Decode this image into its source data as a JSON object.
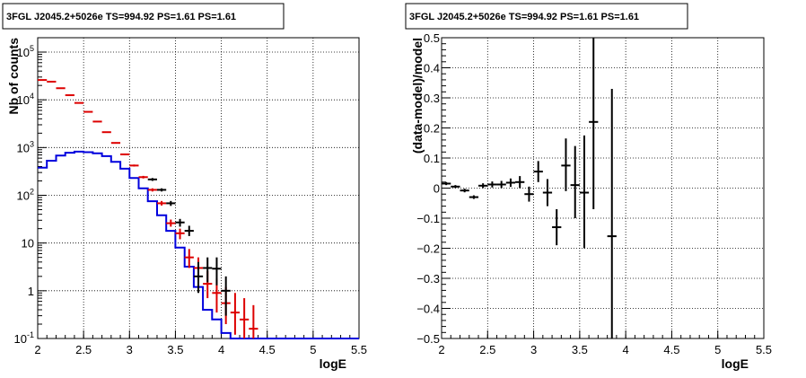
{
  "chart_data": [
    {
      "type": "line",
      "title": "3FGL J2045.2+5026e TS=994.92 PS=1.61 PS=1.61",
      "xlabel": "logE",
      "ylabel": "Nb of counts",
      "xlim": [
        2,
        5.5
      ],
      "ylim": [
        0.1,
        200000
      ],
      "yscale": "log",
      "grid": true,
      "x_ticks": [
        "2",
        "2.5",
        "3",
        "3.5",
        "4",
        "4.5",
        "5",
        "5.5"
      ],
      "y_ticks": [
        "10^-1",
        "1",
        "10",
        "10^2",
        "10^3",
        "10^4",
        "10^5"
      ],
      "x_edges": [
        2.0,
        2.1,
        2.2,
        2.3,
        2.4,
        2.5,
        2.6,
        2.7,
        2.8,
        2.9,
        3.0,
        3.1,
        3.2,
        3.3,
        3.4,
        3.5,
        3.6,
        3.7,
        3.8,
        3.9,
        4.0,
        4.1,
        4.2,
        4.3,
        4.4,
        4.5,
        5.5
      ],
      "series": [
        {
          "color": "#0000dd",
          "style": "step",
          "values": [
            380,
            530,
            680,
            780,
            820,
            800,
            760,
            660,
            500,
            360,
            230,
            140,
            75,
            38,
            18,
            8,
            3.2,
            1.2,
            0.4,
            0.25,
            0.13,
            0.1,
            0.1,
            0.1,
            0.1,
            0.1
          ]
        },
        {
          "color": "#dd0000",
          "style": "errorbar",
          "points": [
            {
              "x": 2.05,
              "y": 26000,
              "lo": 25700,
              "hi": 26300
            },
            {
              "x": 2.15,
              "y": 24000,
              "lo": 23700,
              "hi": 24300
            },
            {
              "x": 2.25,
              "y": 17500,
              "lo": 17250,
              "hi": 17750
            },
            {
              "x": 2.35,
              "y": 12500,
              "lo": 12300,
              "hi": 12700
            },
            {
              "x": 2.45,
              "y": 8600,
              "lo": 8450,
              "hi": 8750
            },
            {
              "x": 2.55,
              "y": 5600,
              "lo": 5500,
              "hi": 5700
            },
            {
              "x": 2.65,
              "y": 3500,
              "lo": 3420,
              "hi": 3580
            },
            {
              "x": 2.75,
              "y": 2100,
              "lo": 2050,
              "hi": 2150
            },
            {
              "x": 2.85,
              "y": 1250,
              "lo": 1210,
              "hi": 1290
            },
            {
              "x": 2.95,
              "y": 720,
              "lo": 690,
              "hi": 750
            },
            {
              "x": 3.05,
              "y": 420,
              "lo": 400,
              "hi": 440
            },
            {
              "x": 3.15,
              "y": 240,
              "lo": 225,
              "hi": 255
            },
            {
              "x": 3.25,
              "y": 130,
              "lo": 120,
              "hi": 140
            },
            {
              "x": 3.35,
              "y": 68,
              "lo": 61,
              "hi": 76
            },
            {
              "x": 3.45,
              "y": 26,
              "lo": 22,
              "hi": 31
            },
            {
              "x": 3.55,
              "y": 16,
              "lo": 12,
              "hi": 20
            },
            {
              "x": 3.65,
              "y": 5,
              "lo": 3,
              "hi": 7.5
            },
            {
              "x": 3.75,
              "y": 3,
              "lo": 1.5,
              "hi": 5
            },
            {
              "x": 3.85,
              "y": 1.4,
              "lo": 0.7,
              "hi": 2.6
            },
            {
              "x": 3.95,
              "y": 0.9,
              "lo": 0.35,
              "hi": 1.8
            },
            {
              "x": 4.05,
              "y": 0.55,
              "lo": 0.2,
              "hi": 1.2
            },
            {
              "x": 4.15,
              "y": 0.35,
              "lo": 0.12,
              "hi": 0.9
            },
            {
              "x": 4.25,
              "y": 0.25,
              "lo": 0.1,
              "hi": 0.7
            },
            {
              "x": 4.35,
              "y": 0.16,
              "lo": 0.1,
              "hi": 0.5
            }
          ]
        },
        {
          "color": "#000000",
          "style": "errorbar",
          "points": [
            {
              "x": 3.25,
              "y": 215,
              "lo": 200,
              "hi": 230
            },
            {
              "x": 3.35,
              "y": 130,
              "lo": 120,
              "hi": 140
            },
            {
              "x": 3.45,
              "y": 68,
              "lo": 60,
              "hi": 76
            },
            {
              "x": 3.55,
              "y": 27,
              "lo": 22,
              "hi": 32
            },
            {
              "x": 3.65,
              "y": 18,
              "lo": 14,
              "hi": 23
            },
            {
              "x": 3.75,
              "y": 2,
              "lo": 0.9,
              "hi": 4
            },
            {
              "x": 3.85,
              "y": 3,
              "lo": 1.5,
              "hi": 5
            },
            {
              "x": 3.95,
              "y": 2.9,
              "lo": 1.3,
              "hi": 5
            },
            {
              "x": 4.05,
              "y": 1,
              "lo": 0.3,
              "hi": 2
            }
          ]
        }
      ]
    },
    {
      "type": "scatter",
      "title": "3FGL J2045.2+5026e TS=994.92 PS=1.61 PS=1.61",
      "xlabel": "logE",
      "ylabel": "(data-model)/model",
      "xlim": [
        2,
        5.5
      ],
      "ylim": [
        -0.5,
        0.5
      ],
      "grid": true,
      "x_ticks": [
        "2",
        "2.5",
        "3",
        "3.5",
        "4",
        "4.5",
        "5",
        "5.5"
      ],
      "y_ticks": [
        "−0.5",
        "−0.4",
        "−0.3",
        "−0.2",
        "−0.1",
        "0",
        "0.1",
        "0.2",
        "0.3",
        "0.4",
        "0.5"
      ],
      "series": [
        {
          "color": "#000000",
          "style": "errorbar",
          "points": [
            {
              "x": 2.05,
              "y": 0.015,
              "lo": 0.01,
              "hi": 0.02
            },
            {
              "x": 2.15,
              "y": 0.005,
              "lo": 0.0,
              "hi": 0.01
            },
            {
              "x": 2.25,
              "y": -0.008,
              "lo": -0.014,
              "hi": -0.002
            },
            {
              "x": 2.35,
              "y": -0.03,
              "lo": -0.036,
              "hi": -0.024
            },
            {
              "x": 2.45,
              "y": 0.008,
              "lo": 0.0,
              "hi": 0.016
            },
            {
              "x": 2.55,
              "y": 0.012,
              "lo": 0.002,
              "hi": 0.022
            },
            {
              "x": 2.65,
              "y": 0.012,
              "lo": 0.0,
              "hi": 0.024
            },
            {
              "x": 2.75,
              "y": 0.018,
              "lo": 0.004,
              "hi": 0.032
            },
            {
              "x": 2.85,
              "y": 0.02,
              "lo": 0.0,
              "hi": 0.04
            },
            {
              "x": 2.95,
              "y": -0.02,
              "lo": -0.045,
              "hi": 0.005
            },
            {
              "x": 3.05,
              "y": 0.055,
              "lo": 0.02,
              "hi": 0.09
            },
            {
              "x": 3.15,
              "y": -0.015,
              "lo": -0.06,
              "hi": 0.03
            },
            {
              "x": 3.25,
              "y": -0.13,
              "lo": -0.19,
              "hi": -0.07
            },
            {
              "x": 3.35,
              "y": 0.075,
              "lo": -0.01,
              "hi": 0.165
            },
            {
              "x": 3.45,
              "y": 0.01,
              "lo": -0.1,
              "hi": 0.14
            },
            {
              "x": 3.55,
              "y": -0.015,
              "lo": -0.2,
              "hi": 0.175
            },
            {
              "x": 3.65,
              "y": 0.22,
              "lo": -0.07,
              "hi": 0.5
            },
            {
              "x": 3.85,
              "y": -0.16,
              "lo": -0.5,
              "hi": 0.33
            }
          ]
        }
      ]
    }
  ]
}
